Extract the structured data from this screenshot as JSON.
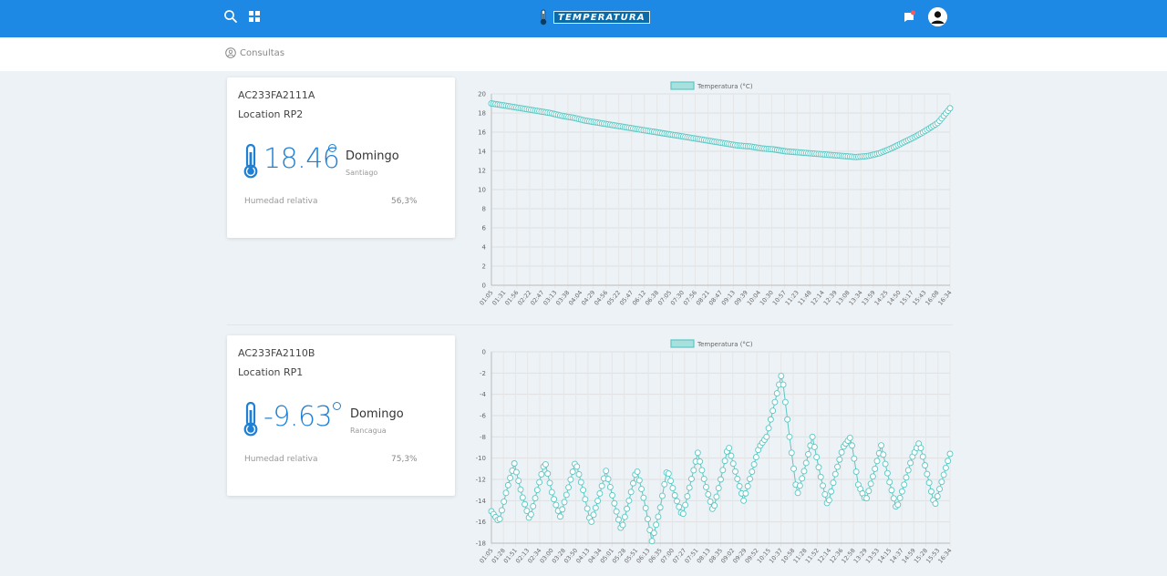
{
  "header": {
    "brand": "TEMPERATURA",
    "icons": [
      "search-icon",
      "grid-icon",
      "notification-icon",
      "user-avatar-icon"
    ],
    "brand_color": "#1e88e5"
  },
  "subheader": {
    "breadcrumb": "Consultas",
    "icon": "user-circle-icon"
  },
  "cards": [
    {
      "device": "AC233FA2111A",
      "location": "Location RP2",
      "temperature": "18.46",
      "day": "Domingo",
      "city": "Santiago",
      "humidity_label": "Humedad relativa",
      "humidity": "56,3%"
    },
    {
      "device": "AC233FA2110B",
      "location": "Location RP1",
      "temperature": "-9.63",
      "day": "Domingo",
      "city": "Rancagua",
      "humidity_label": "Humedad relativa",
      "humidity": "75,3%"
    }
  ],
  "chart_data": [
    {
      "type": "line",
      "legend": "Temperatura (°C)",
      "ylim": [
        0,
        20
      ],
      "yticks": [
        0,
        2,
        4,
        6,
        8,
        10,
        12,
        14,
        16,
        18,
        20
      ],
      "xticks": [
        "01:05",
        "01:31",
        "01:56",
        "02:22",
        "02:47",
        "03:13",
        "03:38",
        "04:04",
        "04:29",
        "04:56",
        "05:22",
        "05:47",
        "06:12",
        "06:38",
        "07:05",
        "07:30",
        "07:56",
        "08:21",
        "08:47",
        "09:13",
        "09:39",
        "10:04",
        "10:30",
        "10:57",
        "11:23",
        "11:48",
        "12:14",
        "12:39",
        "13:08",
        "13:34",
        "13:59",
        "14:25",
        "14:50",
        "15:17",
        "15:43",
        "16:08",
        "16:34"
      ],
      "series": [
        {
          "values": [
            19.0,
            18.8,
            18.6,
            18.4,
            18.2,
            18.0,
            17.7,
            17.5,
            17.2,
            17.0,
            16.8,
            16.6,
            16.4,
            16.2,
            16.0,
            15.8,
            15.6,
            15.4,
            15.2,
            15.0,
            14.8,
            14.6,
            14.5,
            14.3,
            14.2,
            14.0,
            13.9,
            13.8,
            13.7,
            13.6,
            13.5,
            13.4,
            13.5,
            13.8,
            14.3,
            14.9,
            15.5,
            16.2,
            17.0,
            18.5
          ]
        }
      ],
      "color": "#5bc7c3",
      "grid": true
    },
    {
      "type": "line",
      "legend": "Temperatura (°C)",
      "ylim": [
        -18,
        0
      ],
      "yticks": [
        0,
        -2,
        -4,
        -6,
        -8,
        -10,
        -12,
        -14,
        -16,
        -18
      ],
      "xticks": [
        "01:05",
        "01:28",
        "01:51",
        "02:13",
        "02:34",
        "03:00",
        "03:28",
        "03:50",
        "04:13",
        "04:34",
        "05:01",
        "05:28",
        "05:51",
        "06:13",
        "06:35",
        "07:00",
        "07:27",
        "07:51",
        "08:13",
        "08:35",
        "09:02",
        "09:29",
        "09:52",
        "10:15",
        "10:37",
        "10:58",
        "11:28",
        "11:52",
        "12:14",
        "12:36",
        "12:58",
        "13:29",
        "13:53",
        "14:15",
        "14:37",
        "14:59",
        "15:28",
        "15:53",
        "16:34"
      ],
      "series": [
        {
          "values": [
            -15.0,
            -16.0,
            -13.0,
            -10.5,
            -13.5,
            -15.8,
            -13.0,
            -10.3,
            -13.5,
            -15.5,
            -13.0,
            -10.3,
            -13.0,
            -16.2,
            -13.8,
            -11.2,
            -14.0,
            -16.8,
            -14.0,
            -11.0,
            -14.0,
            -17.8,
            -15.0,
            -11.0,
            -13.5,
            -15.5,
            -12.5,
            -9.5,
            -12.5,
            -15.0,
            -12.0,
            -8.8,
            -11.5,
            -14.0,
            -11.5,
            -9.0,
            -8.0,
            -5.0,
            -2.0,
            -8.0,
            -13.5,
            -11.0,
            -8.0,
            -11.5,
            -14.5,
            -11.5,
            -9.0,
            -8.0,
            -12.5,
            -14.0,
            -11.5,
            -8.8,
            -12.0,
            -14.8,
            -12.5,
            -10.0,
            -8.5,
            -11.5,
            -14.5,
            -12.0,
            -9.6
          ]
        }
      ],
      "color": "#5bc7c3",
      "grid": true
    }
  ]
}
